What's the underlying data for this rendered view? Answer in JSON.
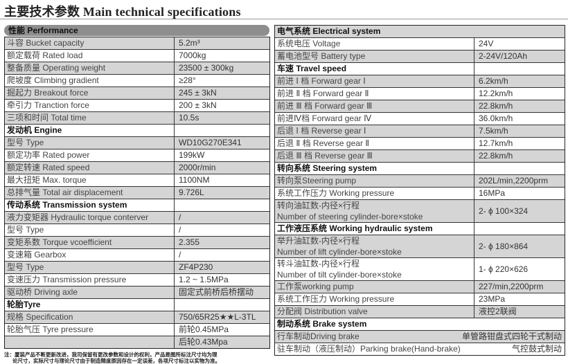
{
  "title": "主要技术参数 Main technical specifications",
  "performance_header": "性能 Performance",
  "left_rows": [
    {
      "label": "斗容 Bucket capacity",
      "value": "5.2m³"
    },
    {
      "label": "额定载荷 Rated load",
      "value": "7000kg"
    },
    {
      "label": "整备质量 Operating weight",
      "value": "23500 ± 300kg"
    },
    {
      "label": "爬坡度 Climbing gradient",
      "value": "≥28°"
    },
    {
      "label": "掘起力 Breakout force",
      "value": "245 ± 3kN"
    },
    {
      "label": "牵引力 Tranction force",
      "value": "200 ± 3kN"
    },
    {
      "label": "三项和时间 Total time",
      "value": "10.5s"
    },
    {
      "label": "发动机 Engine",
      "value": "",
      "header": true
    },
    {
      "label": "型号 Type",
      "value": "WD10G270E341"
    },
    {
      "label": "额定功率 Rated power",
      "value": "199kW"
    },
    {
      "label": "额定转速 Rated speed",
      "value": "2000r/min"
    },
    {
      "label": "最大扭矩 Max. torque",
      "value": "1100NM"
    },
    {
      "label": "总排气量 Total air displacement",
      "value": "9.726L"
    },
    {
      "label": "传动系统 Transmission system",
      "value": "",
      "header": true
    },
    {
      "label": "液力变矩器 Hydraulic torque conterver",
      "value": "/"
    },
    {
      "label": "型号 Type",
      "value": "/"
    },
    {
      "label": "变矩系数 Torque vcoefficient",
      "value": "2.355"
    },
    {
      "label": "变速箱 Gearbox",
      "value": "/"
    },
    {
      "label": "型号 Type",
      "value": "ZF4P230"
    },
    {
      "label": "变速压力 Transmission pressure",
      "value": "1.2 ~ 1.5MPa"
    },
    {
      "label": "驱动桥 Driving axle",
      "value": "固定式前桥后桥摆动"
    },
    {
      "label": "轮胎Tyre",
      "value": "",
      "header": true
    },
    {
      "label": "规格 Specification",
      "value": "750/65R25★★L-3TL"
    },
    {
      "label": "轮胎气压 Tyre pressure",
      "value": "前轮0.45MPa"
    },
    {
      "label": "",
      "value": "后轮0.43Mpa"
    }
  ],
  "right_rows": [
    {
      "label": "电气系统 Electrical system",
      "value": "",
      "header": true,
      "span": true
    },
    {
      "label": "系统电压 Voltage",
      "value": "24V"
    },
    {
      "label": "蓄电池型号 Battery type",
      "value": "2-24V/120Ah"
    },
    {
      "label": "车速 Travel speed",
      "value": "",
      "header": true
    },
    {
      "label": "前进 Ⅰ 档 Forward gear Ⅰ",
      "value": "6.2km/h"
    },
    {
      "label": "前进 Ⅱ 档 Forward gear Ⅱ",
      "value": "12.2km/h"
    },
    {
      "label": "前进 Ⅲ 档 Forward gear Ⅲ",
      "value": "22.8km/h"
    },
    {
      "label": "前进Ⅳ档 Forward gear Ⅳ",
      "value": "36.0km/h"
    },
    {
      "label": "后退 Ⅰ 档 Reverse gear Ⅰ",
      "value": "7.5km/h"
    },
    {
      "label": "后退 Ⅱ 档 Reverse gear Ⅱ",
      "value": "12.7km/h"
    },
    {
      "label": "后退 Ⅲ 档 Reverse gear Ⅲ",
      "value": "22.8km/h"
    },
    {
      "label": "转向系统 Steering system",
      "value": "",
      "header": true
    },
    {
      "label": "转向泵Steering pump",
      "value": "202L/min,2200prm"
    },
    {
      "label": "系统工作压力 Working pressure",
      "value": "16MPa"
    },
    {
      "label": "转向油缸数-内径×行程\nNumber of steering cylinder-bore×stoke",
      "value": "2- ϕ 100×324",
      "two": true
    },
    {
      "label": "工作液压系统 Working hydraulic system",
      "value": "",
      "header": true
    },
    {
      "label": "举升油缸数-内径×行程\nNumber of lift cylinder-bore×stoke",
      "value": "2- ϕ 180×864",
      "two": true
    },
    {
      "label": "转斗油缸数-内径×行程\nNumber of tilt cylinder-bore×stoke",
      "value": "1- ϕ 220×626",
      "two": true
    },
    {
      "label": "工作泵working pump",
      "value": "227/min,2200prm"
    },
    {
      "label": "系统工作压力 Working pressure",
      "value": "23MPa"
    },
    {
      "label": "分配阀 Distribution valve",
      "value": "液控2联阀"
    },
    {
      "label": "制动系统 Brake system",
      "value": "",
      "header": true,
      "span": true
    },
    {
      "label": "行车制动Driving brake",
      "value": "单管路钳盘式四轮干式制动",
      "span": true
    },
    {
      "label": "驻车制动（液压制动）Parking brake(Hand-brake)",
      "value": "气控鼓式制动",
      "span": true
    }
  ],
  "note": [
    "注：厦装产品不断更新改进，我司保留有更改参数和设计的权利，产品是图所标注尺寸均为理",
    "论尺寸，实际尺寸与理论尺寸由于制造精度原因存在一定误差，各项尺寸标注以实物为准。"
  ]
}
